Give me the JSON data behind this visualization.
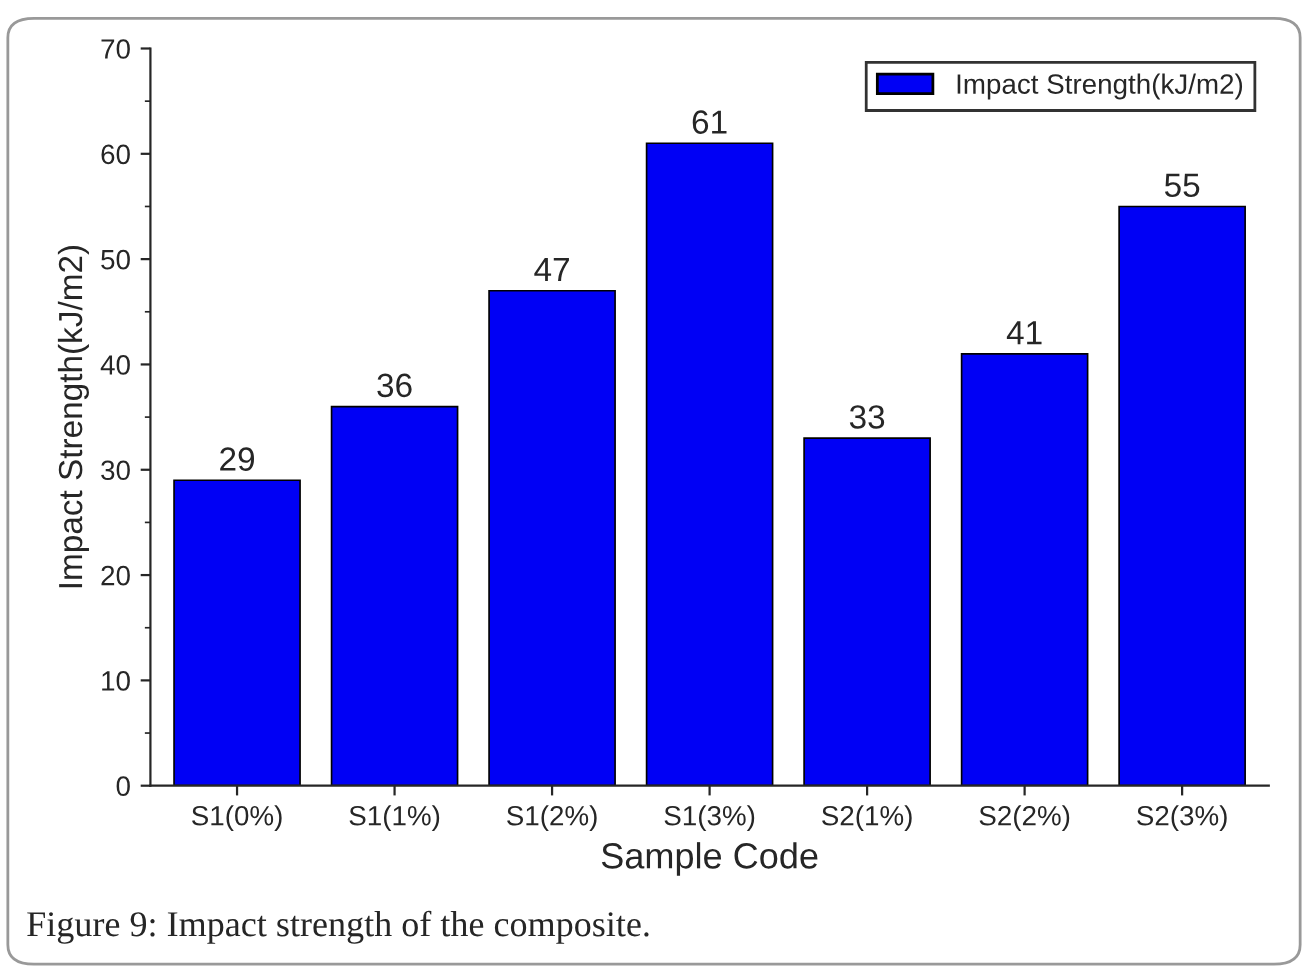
{
  "chart_data": {
    "type": "bar",
    "xlabel": "Sample Code",
    "ylabel": "Impact Strength(kJ/m2)",
    "categories": [
      "S1(0%)",
      "S1(1%)",
      "S1(2%)",
      "S1(3%)",
      "S2(1%)",
      "S2(2%)",
      "S2(3%)"
    ],
    "series": [
      {
        "name": "Impact Strength(kJ/m2)",
        "color": "#0000f5",
        "values": [
          29,
          36,
          47,
          61,
          33,
          41,
          55
        ]
      }
    ],
    "ylim": [
      0,
      70
    ],
    "yticks": [
      0,
      10,
      20,
      30,
      40,
      50,
      60,
      70
    ],
    "data_labels": true,
    "legend": "top right",
    "grid": false,
    "annotations": [
      "Figure 9: Impact strength of the composite."
    ]
  }
}
